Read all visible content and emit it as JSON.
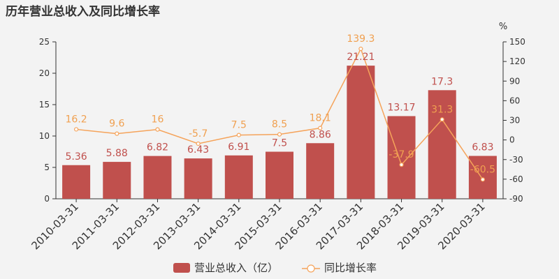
{
  "colors": {
    "bar": "#c0504d",
    "line": "#f5a35a",
    "axis": "#333333"
  },
  "chart_data": {
    "type": "bar",
    "title": "历年营业总收入及同比增长率",
    "categories": [
      "2010-03-31",
      "2011-03-31",
      "2012-03-31",
      "2013-03-31",
      "2014-03-31",
      "2015-03-31",
      "2016-03-31",
      "2017-03-31",
      "2018-03-31",
      "2019-03-31",
      "2020-03-31"
    ],
    "series": [
      {
        "name": "营业总收入（亿）",
        "type": "bar",
        "axis": "left",
        "values": [
          5.36,
          5.88,
          6.82,
          6.43,
          6.91,
          7.5,
          8.86,
          21.21,
          13.17,
          17.3,
          6.83
        ]
      },
      {
        "name": "同比增长率",
        "type": "line",
        "axis": "right",
        "values": [
          16.2,
          9.6,
          16,
          -5.7,
          7.5,
          8.5,
          18.1,
          139.3,
          -37.9,
          31.3,
          -60.5
        ]
      }
    ],
    "y_left": {
      "ylim": [
        0,
        25
      ],
      "ticks": [
        0,
        5,
        10,
        15,
        20,
        25
      ]
    },
    "y_right": {
      "ylim": [
        -90,
        150
      ],
      "ticks": [
        -90,
        -60,
        -30,
        0,
        30,
        60,
        90,
        120,
        150
      ],
      "unit": "%"
    },
    "legend_position": "bottom",
    "grid": false
  }
}
